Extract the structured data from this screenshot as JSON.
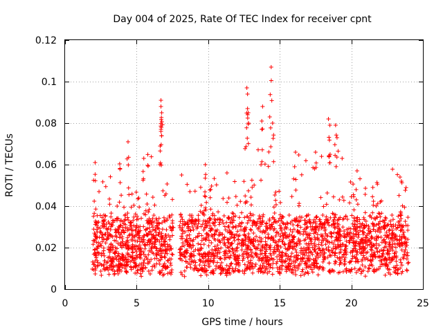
{
  "chart_data": {
    "type": "scatter",
    "title": "Day 004 of 2025, Rate Of TEC Index for receiver cpnt",
    "xlabel": "GPS time / hours",
    "ylabel": "ROTI / TECUs",
    "xlim": [
      0,
      25
    ],
    "ylim": [
      0,
      0.12
    ],
    "x_ticks": [
      0,
      5,
      10,
      15,
      20,
      25
    ],
    "x_tick_labels": [
      "0",
      "5",
      "10",
      "15",
      "20",
      "25"
    ],
    "y_ticks": [
      0,
      0.02,
      0.04,
      0.06,
      0.08,
      0.1,
      0.12
    ],
    "y_tick_labels": [
      "0",
      "0.02",
      "0.04",
      "0.06",
      "0.08",
      "0.1",
      "0.12"
    ],
    "grid": true,
    "marker": "plus",
    "color": "#ff0000",
    "series": [
      {
        "name": "ROTI",
        "dense_band": {
          "x_start": 1.9,
          "x_end": 24.0,
          "gap": [
            7.6,
            8.0
          ],
          "typical_min": 0.008,
          "typical_max": 0.035
        },
        "notable_points": [
          {
            "x": 4.4,
            "y": 0.071
          },
          {
            "x": 6.7,
            "y": 0.091
          },
          {
            "x": 6.7,
            "y": 0.088
          },
          {
            "x": 6.75,
            "y": 0.085
          },
          {
            "x": 6.7,
            "y": 0.077
          },
          {
            "x": 6.7,
            "y": 0.076
          },
          {
            "x": 12.7,
            "y": 0.097
          },
          {
            "x": 12.75,
            "y": 0.094
          },
          {
            "x": 12.8,
            "y": 0.085
          },
          {
            "x": 13.8,
            "y": 0.088
          },
          {
            "x": 14.4,
            "y": 0.107
          },
          {
            "x": 14.3,
            "y": 0.083
          },
          {
            "x": 14.5,
            "y": 0.08
          },
          {
            "x": 18.4,
            "y": 0.082
          },
          {
            "x": 18.5,
            "y": 0.079
          },
          {
            "x": 18.9,
            "y": 0.079
          },
          {
            "x": 19.0,
            "y": 0.073
          },
          {
            "x": 20.4,
            "y": 0.057
          },
          {
            "x": 21.5,
            "y": 0.049
          },
          {
            "x": 23.4,
            "y": 0.054
          },
          {
            "x": 23.5,
            "y": 0.052
          },
          {
            "x": 9.8,
            "y": 0.06
          },
          {
            "x": 2.1,
            "y": 0.061
          },
          {
            "x": 5.5,
            "y": 0.063
          },
          {
            "x": 16.1,
            "y": 0.066
          },
          {
            "x": 17.5,
            "y": 0.066
          }
        ]
      }
    ]
  }
}
